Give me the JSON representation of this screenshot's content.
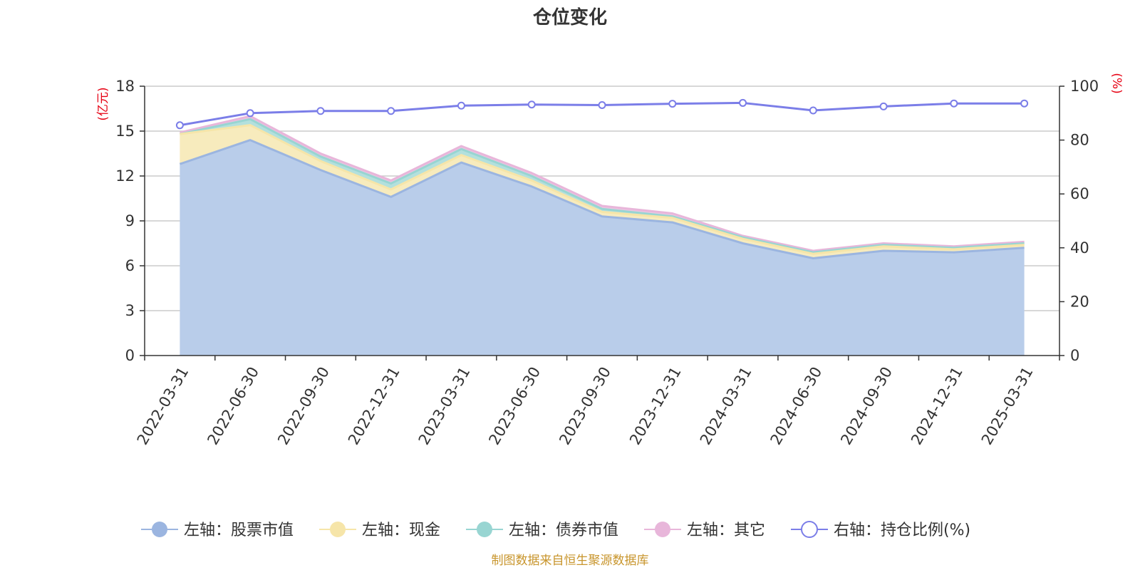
{
  "chart_data": {
    "type": "area",
    "title": "仓位变化",
    "left_axis_unit": "(亿元)",
    "right_axis_unit": "(%)",
    "categories": [
      "2022-03-31",
      "2022-06-30",
      "2022-09-30",
      "2022-12-31",
      "2023-03-31",
      "2023-06-30",
      "2023-09-30",
      "2023-12-31",
      "2024-03-31",
      "2024-06-30",
      "2024-09-30",
      "2024-12-31",
      "2025-03-31"
    ],
    "left_ylim": [
      0,
      18
    ],
    "left_ticks": [
      0,
      3,
      6,
      9,
      12,
      15,
      18
    ],
    "right_ylim": [
      0,
      100
    ],
    "right_ticks": [
      0,
      20,
      40,
      60,
      80,
      100
    ],
    "series": [
      {
        "name": "左轴：股票市值",
        "axis": "left",
        "stack": true,
        "color": "#9bb5e0",
        "fill": "#b9cdea",
        "values": [
          12.8,
          14.4,
          12.4,
          10.6,
          12.9,
          11.3,
          9.3,
          8.9,
          7.5,
          6.5,
          7.0,
          6.9,
          7.2
        ]
      },
      {
        "name": "左轴：现金",
        "axis": "left",
        "stack": true,
        "color": "#f6e5a9",
        "fill": "#f7ebbd",
        "values": [
          2.0,
          1.0,
          0.6,
          0.5,
          0.5,
          0.4,
          0.3,
          0.3,
          0.3,
          0.3,
          0.3,
          0.2,
          0.2
        ]
      },
      {
        "name": "左轴：债券市值",
        "axis": "left",
        "stack": true,
        "color": "#98d5d2",
        "fill": "#b3e0dd",
        "values": [
          0.0,
          0.4,
          0.3,
          0.4,
          0.4,
          0.3,
          0.2,
          0.1,
          0.1,
          0.1,
          0.1,
          0.1,
          0.1
        ]
      },
      {
        "name": "左轴：其它",
        "axis": "left",
        "stack": true,
        "color": "#e8b6da",
        "fill": "#ecc7e2",
        "values": [
          0.1,
          0.2,
          0.2,
          0.2,
          0.2,
          0.2,
          0.2,
          0.2,
          0.1,
          0.1,
          0.1,
          0.1,
          0.1
        ]
      },
      {
        "name": "右轴：持仓比例(%)",
        "axis": "right",
        "stack": false,
        "color": "#7b7ee8",
        "values": [
          85.5,
          90.0,
          90.8,
          90.8,
          92.8,
          93.2,
          93.0,
          93.5,
          93.8,
          91.0,
          92.5,
          93.6,
          93.6
        ]
      }
    ],
    "grid": true,
    "legend_position": "bottom"
  },
  "footer": {
    "source": "制图数据来自恒生聚源数据库"
  }
}
